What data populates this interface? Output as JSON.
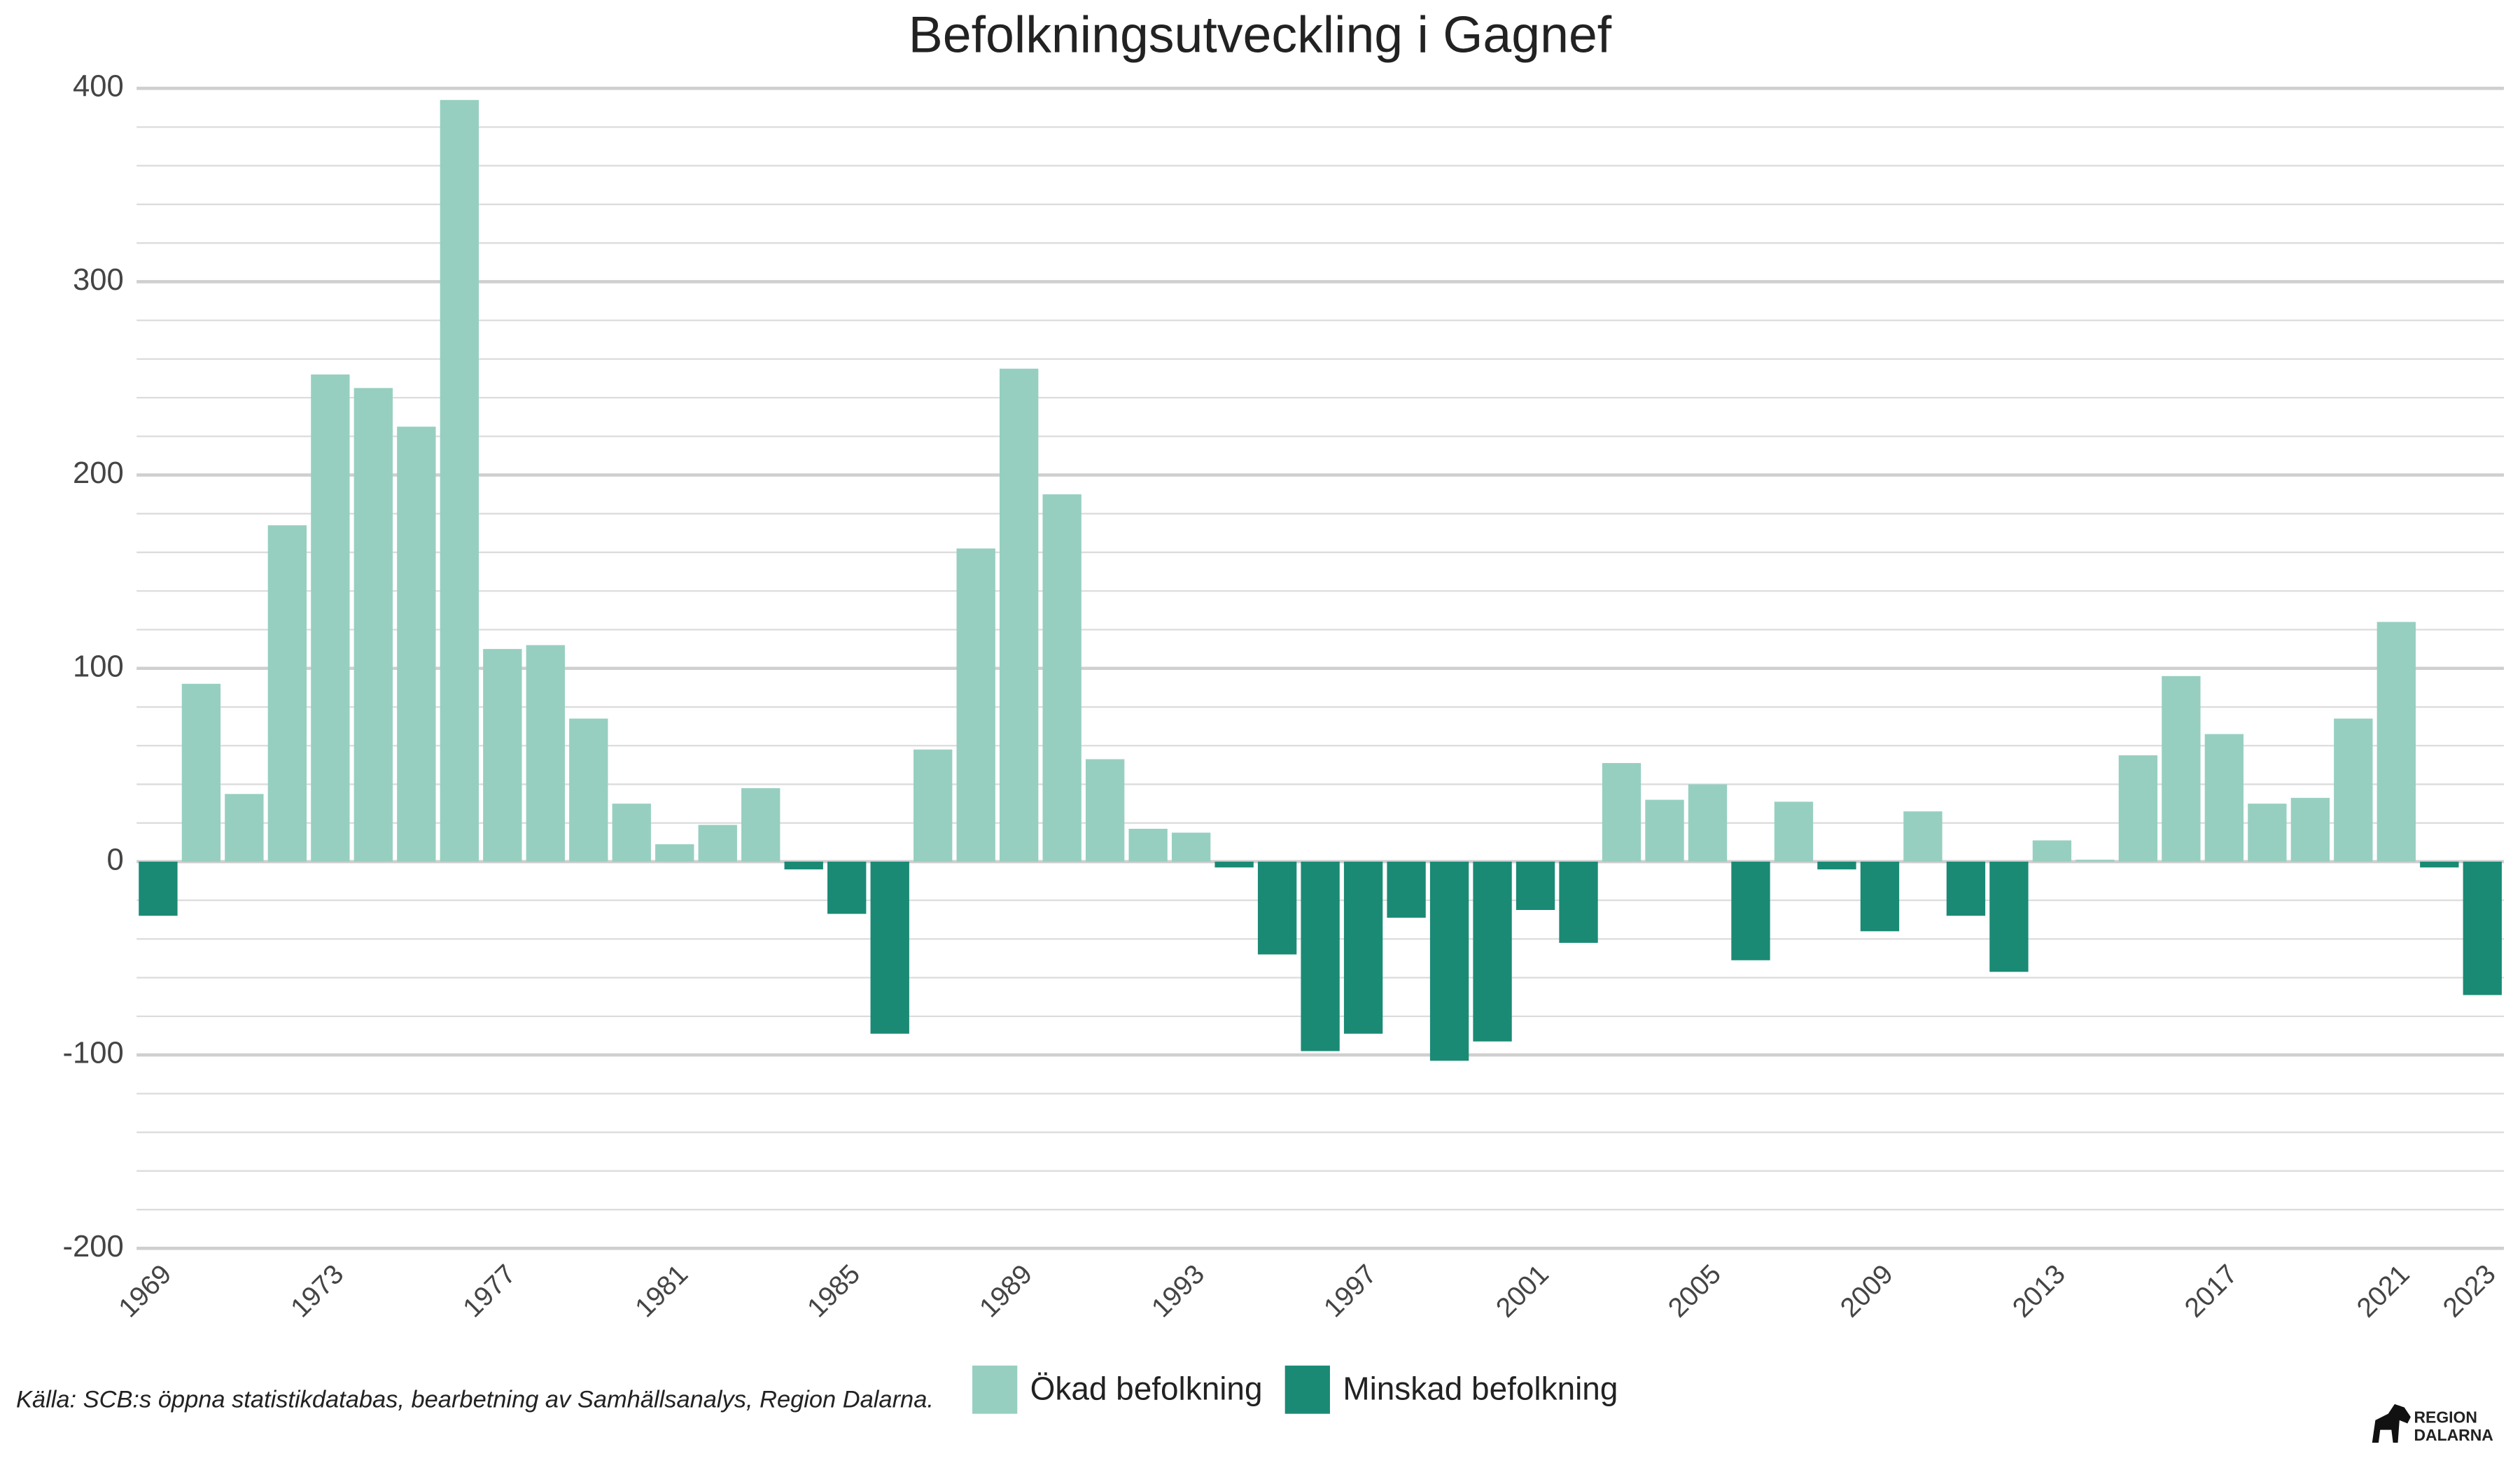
{
  "chart_data": {
    "type": "bar",
    "title": "Befolkningsutveckling i Gagnef",
    "categories": [
      "1969",
      null,
      null,
      null,
      "1973",
      null,
      null,
      null,
      "1977",
      null,
      null,
      null,
      "1981",
      null,
      null,
      null,
      "1985",
      null,
      null,
      null,
      "1989",
      null,
      null,
      null,
      "1993",
      null,
      null,
      null,
      "1997",
      null,
      null,
      null,
      "2001",
      null,
      null,
      null,
      "2005",
      null,
      null,
      null,
      "2009",
      null,
      null,
      null,
      "2013",
      null,
      null,
      null,
      "2017",
      null,
      null,
      null,
      "2021",
      null,
      "2023"
    ],
    "series": [
      {
        "name": "Ökad befolkning",
        "color": "#96cfc0",
        "values": [
          null,
          92,
          35,
          174,
          252,
          245,
          225,
          394,
          110,
          112,
          74,
          30,
          9,
          19,
          38,
          null,
          null,
          null,
          58,
          162,
          255,
          190,
          53,
          17,
          15,
          null,
          null,
          null,
          null,
          null,
          null,
          null,
          null,
          null,
          51,
          32,
          40,
          null,
          31,
          null,
          null,
          26,
          null,
          null,
          11,
          1,
          55,
          96,
          66,
          30,
          33,
          74,
          124,
          null,
          null
        ]
      },
      {
        "name": "Minskad befolkning",
        "color": "#1a8a75",
        "values": [
          -28,
          null,
          null,
          null,
          null,
          null,
          null,
          null,
          null,
          null,
          null,
          null,
          null,
          null,
          null,
          -4,
          -27,
          -89,
          null,
          null,
          null,
          null,
          null,
          null,
          null,
          -3,
          -48,
          -98,
          -89,
          -29,
          -103,
          -93,
          -25,
          -42,
          null,
          null,
          null,
          -51,
          null,
          -4,
          -36,
          null,
          -28,
          -57,
          null,
          null,
          null,
          null,
          null,
          null,
          null,
          null,
          null,
          -3,
          -69
        ]
      }
    ],
    "ylim": [
      -200,
      400
    ],
    "yticks": [
      -200,
      -100,
      0,
      100,
      200,
      300,
      400
    ],
    "yminorticks": [
      -180,
      -160,
      -140,
      -120,
      -80,
      -60,
      -40,
      -20,
      20,
      40,
      60,
      80,
      120,
      140,
      160,
      180,
      220,
      240,
      260,
      280,
      320,
      340,
      360,
      380
    ],
    "grid": true,
    "legend": "bottom",
    "source": "Källa: SCB:s öppna statistikdatabas, bearbetning av Samhällsanalys, Region Dalarna.",
    "logo": [
      "REGION",
      "DALARNA"
    ]
  }
}
